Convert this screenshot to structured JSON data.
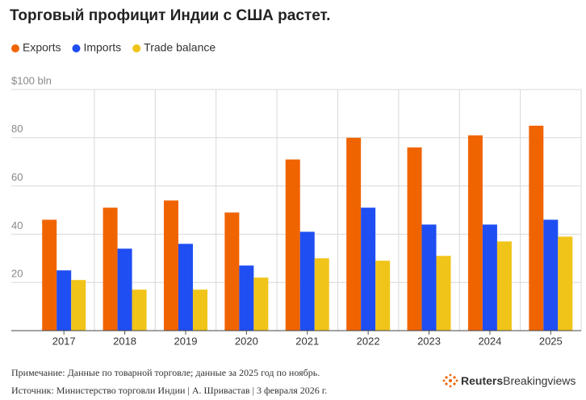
{
  "chart_data": {
    "type": "bar",
    "title": "Торговый профицит Индии с США растет.",
    "categories": [
      "2017",
      "2018",
      "2019",
      "2020",
      "2021",
      "2022",
      "2023",
      "2024",
      "2025"
    ],
    "series": [
      {
        "name": "Exports",
        "color": "#f06400",
        "values": [
          46,
          51,
          54,
          49,
          71,
          80,
          76,
          81,
          85
        ]
      },
      {
        "name": "Imports",
        "color": "#1f4ef2",
        "values": [
          25,
          34,
          36,
          27,
          41,
          51,
          44,
          44,
          46
        ]
      },
      {
        "name": "Trade balance",
        "color": "#f0c419",
        "values": [
          21,
          17,
          17,
          22,
          30,
          29,
          31,
          37,
          39
        ]
      }
    ],
    "ylim": [
      0,
      100
    ],
    "yticks": [
      {
        "value": 100,
        "label": "$100 bln"
      },
      80,
      60,
      40,
      20
    ],
    "grid": true,
    "legend": "top-left",
    "note": "Примечание: Данные по товарной торговле; данные за 2025 год по ноябрь.",
    "source": "Источник: Министерство торговли Индии | А. Шривастав | 3 февраля 2026 г.",
    "brand": "Reuters",
    "brand_sub": "Breakingviews"
  }
}
